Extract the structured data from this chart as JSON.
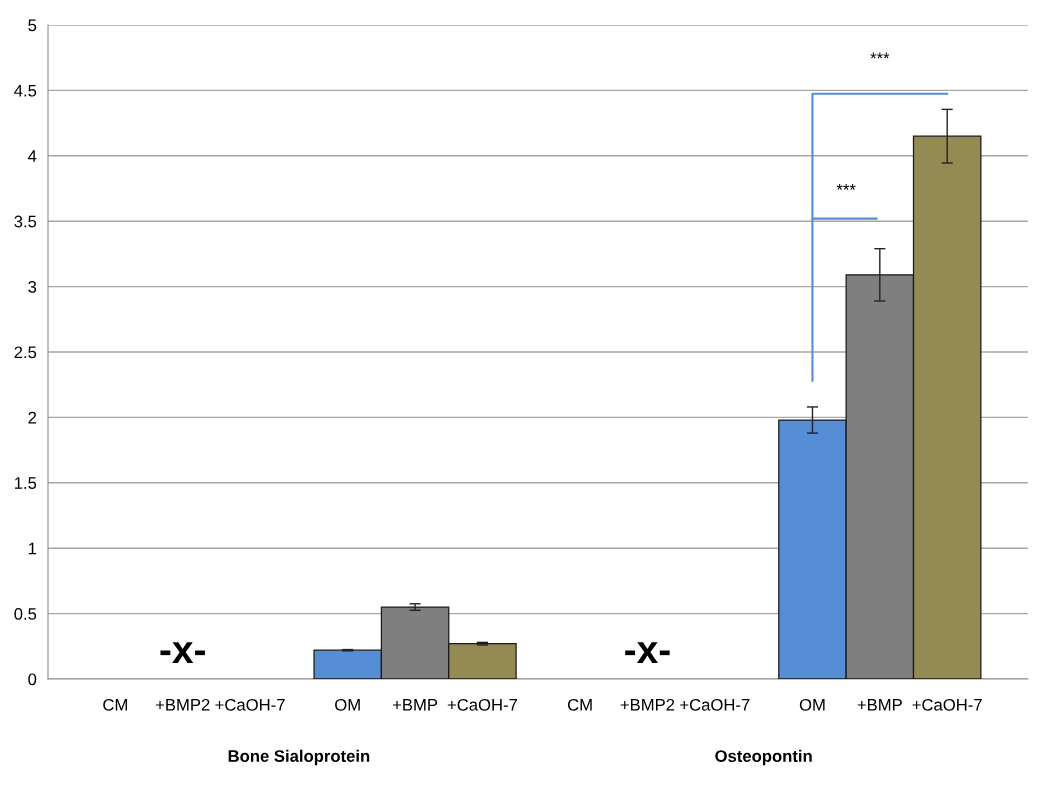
{
  "chart_data": {
    "type": "bar",
    "categories": [
      "CM",
      "+BMP2",
      "+CaOH-7",
      "OM",
      "+BMP",
      "+CaOH-7",
      "CM",
      "+BMP2",
      "+CaOH-7",
      "OM",
      "+BMP",
      "+CaOH-7"
    ],
    "values": [
      null,
      null,
      null,
      0.22,
      0.55,
      0.27,
      null,
      null,
      null,
      1.98,
      3.09,
      4.15
    ],
    "errors": [
      null,
      null,
      null,
      0.005,
      0.025,
      0.01,
      null,
      null,
      null,
      0.1,
      0.2,
      0.205
    ],
    "colors": [
      "#558ed5",
      "#7f7f7f",
      "#948a54",
      "#558ed5",
      "#7f7f7f",
      "#948a54",
      "#558ed5",
      "#7f7f7f",
      "#948a54",
      "#558ed5",
      "#7f7f7f",
      "#948a54"
    ],
    "ylim": [
      0,
      5
    ],
    "yticks": [
      0,
      0.5,
      1,
      1.5,
      2,
      2.5,
      3,
      3.5,
      4,
      4.5,
      5
    ],
    "grid": "y",
    "annotations": [
      "-x-",
      "-x-",
      "***",
      "***",
      "Bone Sialoprotein",
      "Osteopontin"
    ]
  }
}
